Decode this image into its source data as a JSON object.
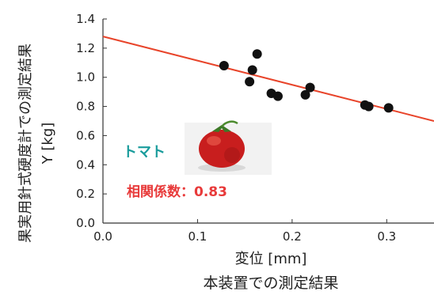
{
  "chart_data": {
    "type": "scatter",
    "xlabel": "変位 [mm]",
    "xlabel_sub": "本装置での測定結果",
    "ylabel": "果実用針式硬度計での測定結果",
    "ylabel_unit": "Y [kg]",
    "xlim": [
      0.0,
      0.35
    ],
    "ylim": [
      0.0,
      1.4
    ],
    "xticks": [
      "0.0",
      "0.1",
      "0.2",
      "0.3"
    ],
    "yticks": [
      "0.0",
      "0.2",
      "0.4",
      "0.6",
      "0.8",
      "1.0",
      "1.2",
      "1.4"
    ],
    "grid": false,
    "points": [
      {
        "x": 0.128,
        "y": 1.08
      },
      {
        "x": 0.155,
        "y": 0.97
      },
      {
        "x": 0.158,
        "y": 1.05
      },
      {
        "x": 0.163,
        "y": 1.16
      },
      {
        "x": 0.178,
        "y": 0.89
      },
      {
        "x": 0.185,
        "y": 0.87
      },
      {
        "x": 0.214,
        "y": 0.88
      },
      {
        "x": 0.219,
        "y": 0.93
      },
      {
        "x": 0.277,
        "y": 0.81
      },
      {
        "x": 0.281,
        "y": 0.8
      },
      {
        "x": 0.302,
        "y": 0.79
      }
    ],
    "trendline": {
      "x": [
        0.0,
        0.35
      ],
      "y": [
        1.28,
        0.7
      ]
    },
    "annotations": {
      "fruit_label": "トマト",
      "correlation_label": "相関係数：0.83"
    },
    "colors": {
      "trendline": "#e8442a",
      "points": "#111111",
      "fruit_label": "#1a9c9c",
      "correlation_label": "#e83a3a",
      "axis": "#333333"
    }
  }
}
